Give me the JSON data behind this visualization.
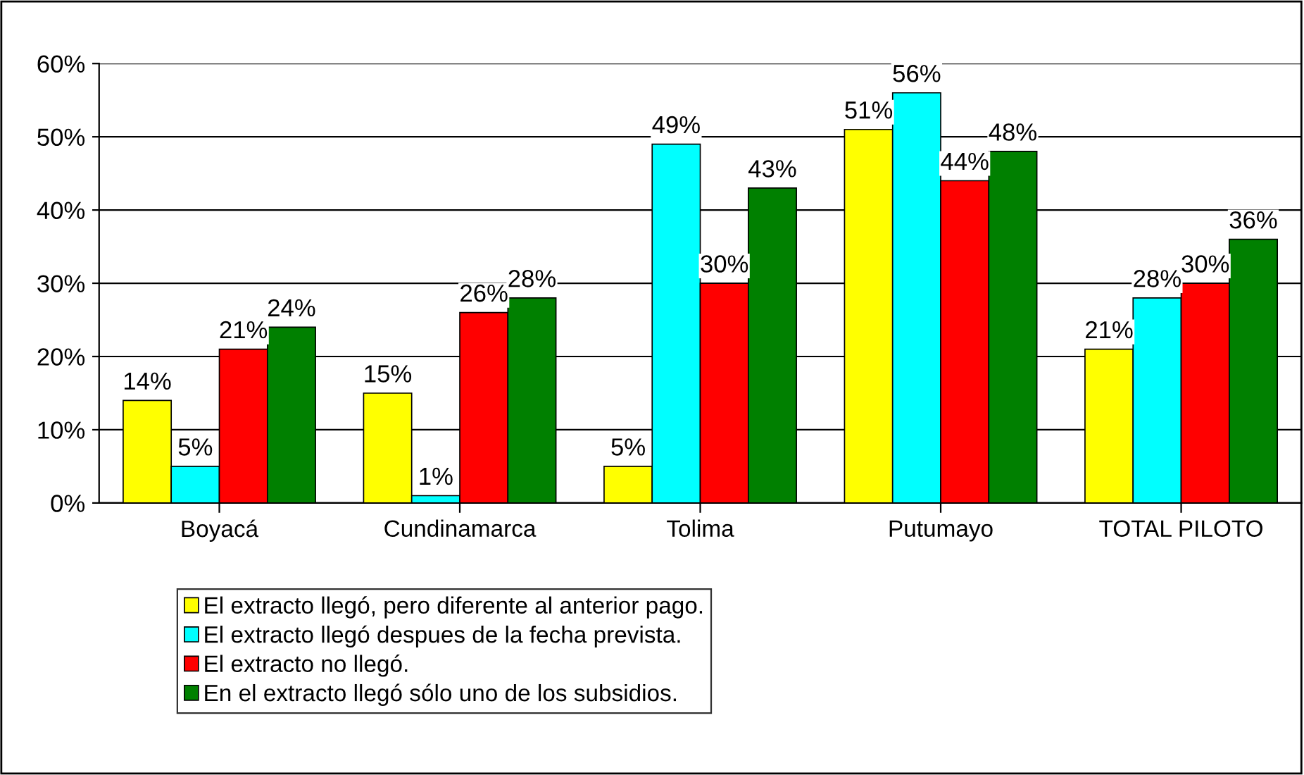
{
  "chart_data": {
    "type": "bar",
    "categories": [
      "Boyacá",
      "Cundinamarca",
      "Tolima",
      "Putumayo",
      "TOTAL PILOTO"
    ],
    "series": [
      {
        "name": "El extracto llegó, pero diferente al anterior pago.",
        "color": "#ffff00",
        "values": [
          14,
          15,
          5,
          51,
          21
        ],
        "value_labels": [
          "14%",
          "15%",
          "5%",
          "51%",
          "21%"
        ]
      },
      {
        "name": "El extracto llegó despues de la fecha prevista.",
        "color": "#00ffff",
        "values": [
          5,
          1,
          49,
          56,
          28
        ],
        "value_labels": [
          "5%",
          "1%",
          "49%",
          "56%",
          "28%"
        ]
      },
      {
        "name": "El extracto no llegó.",
        "color": "#ff0000",
        "values": [
          21,
          26,
          30,
          44,
          30
        ],
        "value_labels": [
          "21%",
          "26%",
          "30%",
          "44%",
          "30%"
        ]
      },
      {
        "name": "En el extracto llegó sólo uno de los subsidios.",
        "color": "#008000",
        "values": [
          24,
          28,
          43,
          48,
          36
        ],
        "value_labels": [
          "24%",
          "28%",
          "43%",
          "48%",
          "36%"
        ]
      }
    ],
    "ylim": [
      0,
      60
    ],
    "yticks": [
      {
        "value": 0,
        "label": "0%"
      },
      {
        "value": 10,
        "label": "10%"
      },
      {
        "value": 20,
        "label": "20%"
      },
      {
        "value": 30,
        "label": "30%"
      },
      {
        "value": 40,
        "label": "40%"
      },
      {
        "value": 50,
        "label": "50%"
      },
      {
        "value": 60,
        "label": "60%"
      }
    ],
    "grid": "y",
    "legend": "bottom"
  }
}
